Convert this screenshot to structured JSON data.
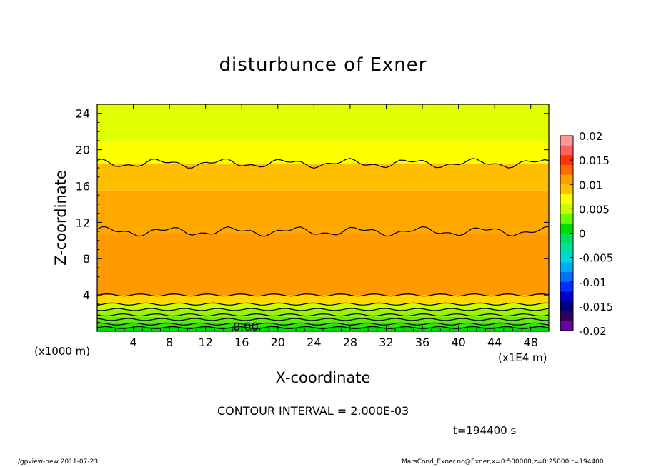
{
  "chart_data": {
    "type": "heatmap",
    "title": "disturbunce of Exner",
    "xlabel": "X-coordinate",
    "ylabel": "Z-coordinate",
    "x_unit_left": "(x1000 m)",
    "x_unit_right": "(x1E4 m)",
    "x_ticks": [
      "4",
      "8",
      "12",
      "16",
      "20",
      "24",
      "28",
      "32",
      "36",
      "40",
      "44",
      "48"
    ],
    "y_ticks": [
      "4",
      "8",
      "12",
      "16",
      "20",
      "24"
    ],
    "xlim": [
      0,
      50
    ],
    "ylim": [
      0,
      25
    ],
    "colorbar": {
      "labels": [
        "0.02",
        "0.015",
        "0.01",
        "0.005",
        "0",
        "-0.005",
        "-0.01",
        "-0.015",
        "-0.02"
      ],
      "range": [
        -0.02,
        0.02
      ],
      "colors": [
        "#ff9999",
        "#ff6060",
        "#ff3300",
        "#ff6a00",
        "#ff9f00",
        "#ffc000",
        "#ffff00",
        "#ccff00",
        "#66ff00",
        "#00dd00",
        "#00e060",
        "#00e0a0",
        "#00d8d8",
        "#00a8ff",
        "#0070ff",
        "#0030ff",
        "#0000cc",
        "#000080",
        "#300060",
        "#6a00a0"
      ]
    },
    "bands": [
      {
        "z_min": 0.0,
        "z_max": 0.5,
        "value": -0.001,
        "color": "#00dd00"
      },
      {
        "z_min": 0.5,
        "z_max": 1.0,
        "value": 0.0,
        "color": "#33e600"
      },
      {
        "z_min": 1.0,
        "z_max": 1.6,
        "value": 0.002,
        "color": "#66ee00"
      },
      {
        "z_min": 1.6,
        "z_max": 2.4,
        "value": 0.004,
        "color": "#99f500"
      },
      {
        "z_min": 2.4,
        "z_max": 3.0,
        "value": 0.005,
        "color": "#ccff00"
      },
      {
        "z_min": 3.0,
        "z_max": 4.0,
        "value": 0.007,
        "color": "#ffd800"
      },
      {
        "z_min": 4.0,
        "z_max": 10.7,
        "value": 0.01,
        "color": "#ff9a00"
      },
      {
        "z_min": 10.7,
        "z_max": 15.5,
        "value": 0.009,
        "color": "#ffa800"
      },
      {
        "z_min": 15.5,
        "z_max": 18.5,
        "value": 0.008,
        "color": "#ffbe00"
      },
      {
        "z_min": 18.5,
        "z_max": 21.0,
        "value": 0.006,
        "color": "#ffff00"
      },
      {
        "z_min": 21.0,
        "z_max": 25.0,
        "value": 0.005,
        "color": "#e0ff00"
      }
    ],
    "contour_lines_z": [
      0.4,
      0.8,
      1.3,
      1.8,
      2.4,
      3.0,
      4.0,
      11.0,
      18.5
    ],
    "contour_zero_label": "0.00",
    "contour_interval": "CONTOUR INTERVAL = 2.000E-03",
    "time": "t=194400 s"
  },
  "footer": {
    "left": "./gpview-new   2011-07-23",
    "right": "MarsCond_Exner.nc@Exner,x=0:500000,z=0:25000,t=194400"
  }
}
